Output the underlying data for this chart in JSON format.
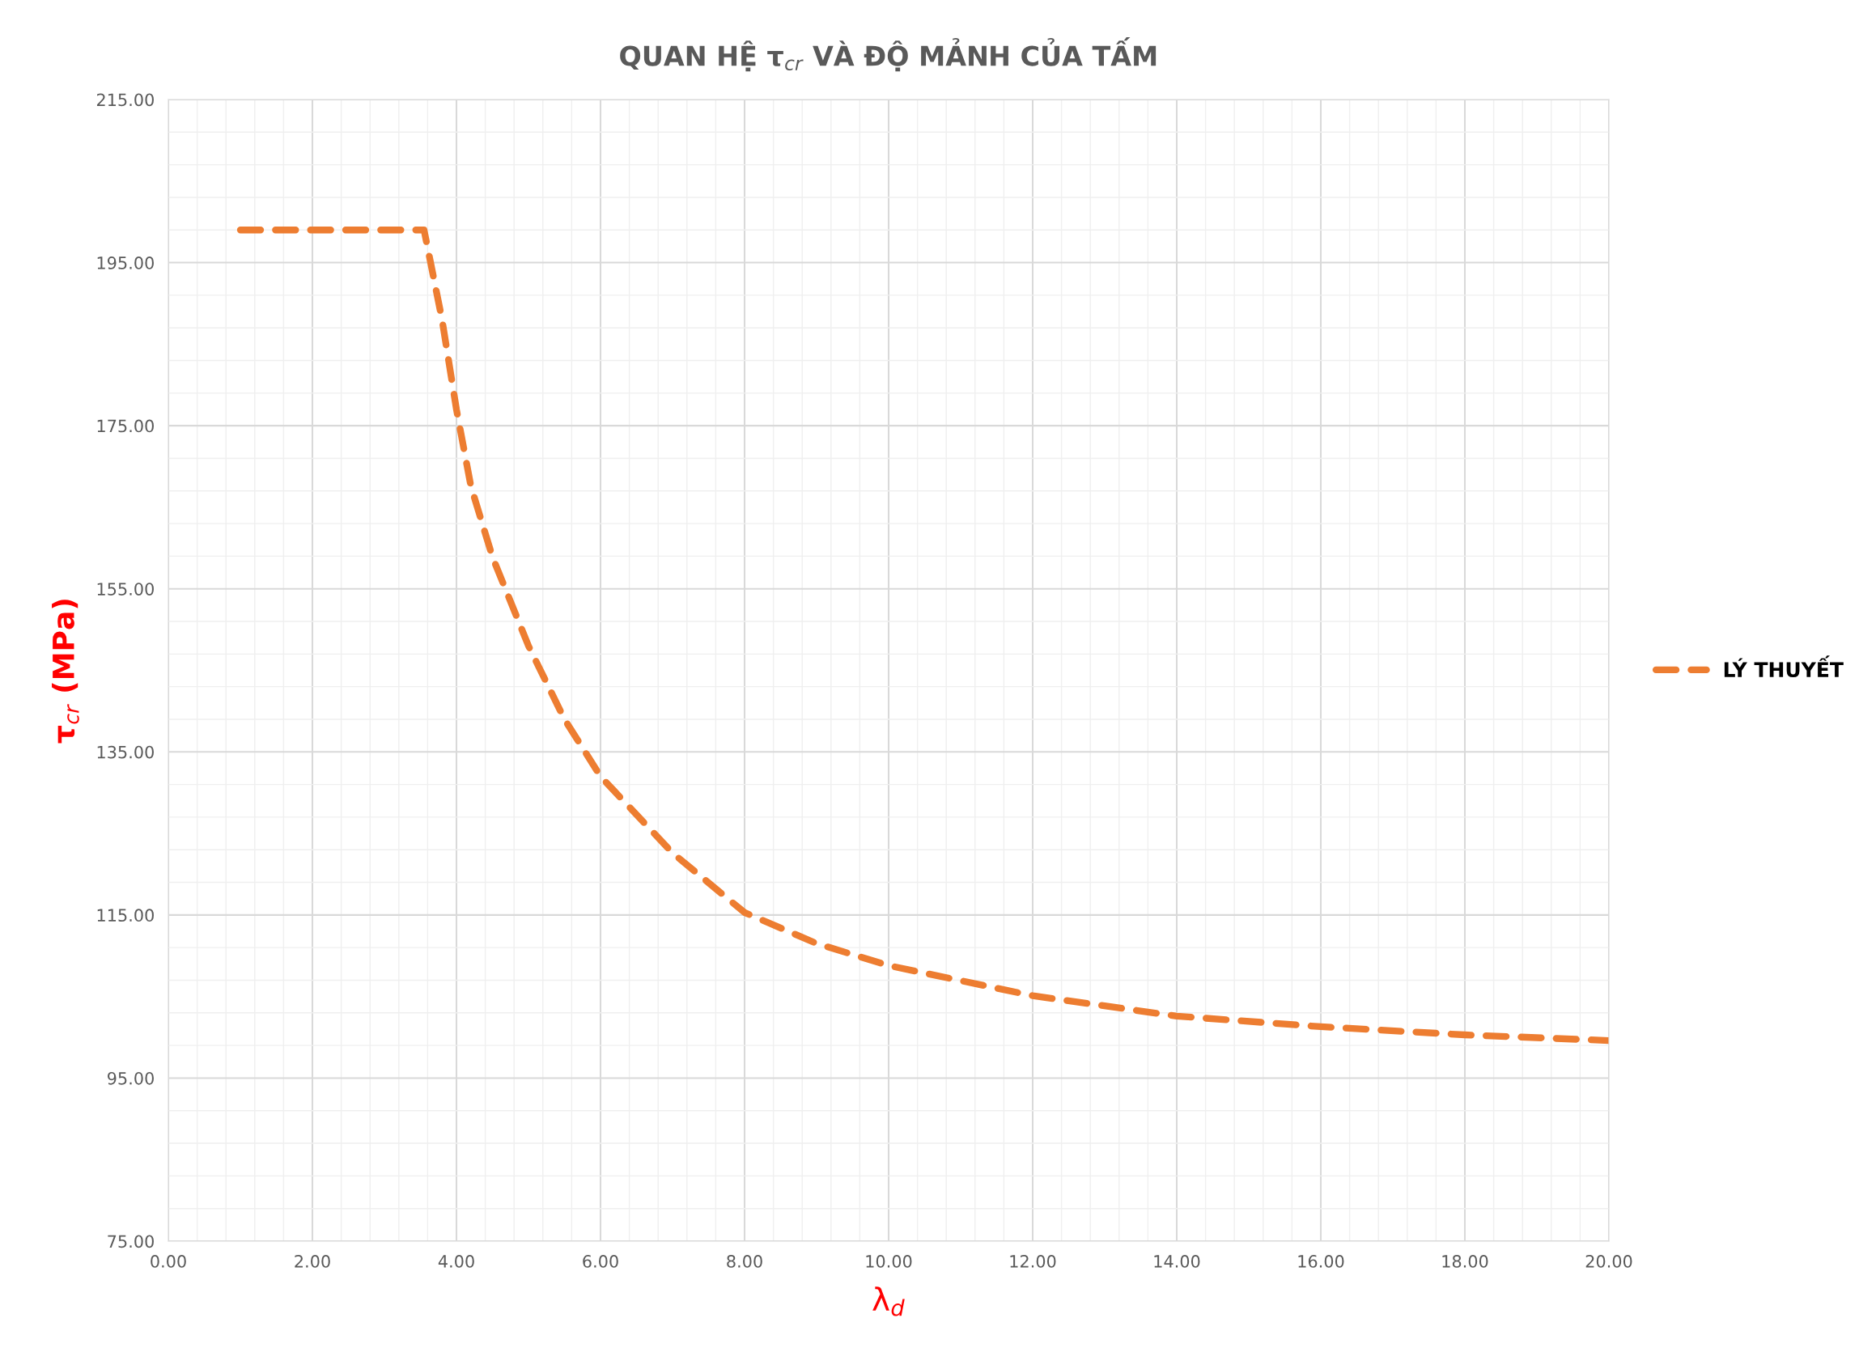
{
  "chart_data": {
    "type": "line",
    "title": "QUAN HỆ τ$_{cr}$ VÀ ĐỘ MẢNH CỦA TẤM",
    "xlabel": "λ$_{d}$",
    "ylabel": "τ$_{cr}$ (MPa)",
    "series": [
      {
        "name": "LÝ THUYẾT",
        "color": "#ed7d31",
        "x": [
          1,
          2,
          3,
          3.55,
          3.8,
          4,
          4.2,
          4.5,
          5,
          5.5,
          6,
          7,
          8,
          9,
          10,
          12,
          14,
          16,
          18,
          20
        ],
        "values": [
          199,
          199,
          199,
          199,
          188,
          177,
          167.6,
          158.9,
          148,
          139,
          132,
          122.6,
          115.3,
          111.5,
          108.8,
          105.1,
          102.6,
          101.3,
          100.3,
          99.6
        ]
      }
    ],
    "xlim": [
      0,
      20
    ],
    "xticks": [
      {
        "value": 0,
        "label": "0.00"
      },
      {
        "value": 2,
        "label": "2.00"
      },
      {
        "value": 4,
        "label": "4.00"
      },
      {
        "value": 6,
        "label": "6.00"
      },
      {
        "value": 8,
        "label": "8.00"
      },
      {
        "value": 10,
        "label": "10.00"
      },
      {
        "value": 12,
        "label": "12.00"
      },
      {
        "value": 14,
        "label": "14.00"
      },
      {
        "value": 16,
        "label": "16.00"
      },
      {
        "value": 18,
        "label": "18.00"
      },
      {
        "value": 20,
        "label": "20.00"
      }
    ],
    "ylim": [
      75,
      215
    ],
    "yticks": [
      {
        "value": 75,
        "label": "75.00"
      },
      {
        "value": 95,
        "label": "95.00"
      },
      {
        "value": 115,
        "label": "115.00"
      },
      {
        "value": 135,
        "label": "135.00"
      },
      {
        "value": 155,
        "label": "155.00"
      },
      {
        "value": 175,
        "label": "175.00"
      },
      {
        "value": 195,
        "label": "195.00"
      },
      {
        "value": 215,
        "label": "215.00"
      }
    ],
    "grid": true,
    "legend": "right",
    "line_style": "dashed",
    "marker": "none"
  }
}
